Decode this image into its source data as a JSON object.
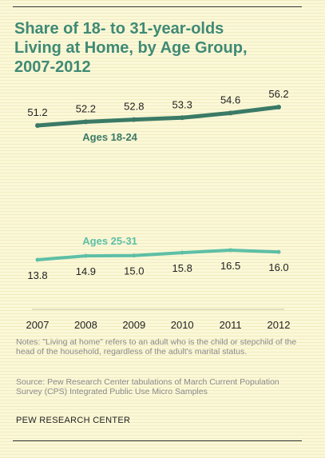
{
  "title_lines": [
    "Share of 18- to 31-year-olds",
    "Living at Home, by Age Group,",
    "2007-2012"
  ],
  "notes": "Notes: \"Living at home\" refers to an adult who is the child or stepchild of the head of the household, regardless of the adult's marital status.",
  "source": "Source: Pew Research Center tabulations of March Current Population Survey (CPS) Integrated Public Use Micro Samples",
  "footer": "PEW RESEARCH CENTER",
  "colors": {
    "title": "#3f8a75",
    "series_18_24": "#3a7a66",
    "series_25_31": "#5dbfa6"
  },
  "chart_data": {
    "type": "line",
    "x": [
      "2007",
      "2008",
      "2009",
      "2010",
      "2011",
      "2012"
    ],
    "series": [
      {
        "name": "Ages 18-24",
        "values": [
          51.2,
          52.2,
          52.8,
          53.3,
          54.6,
          56.2
        ],
        "value_labels": [
          "51.2",
          "52.2",
          "52.8",
          "53.3",
          "54.6",
          "56.2"
        ]
      },
      {
        "name": "Ages 25-31",
        "values": [
          13.8,
          14.9,
          15.0,
          15.8,
          16.5,
          16.0
        ],
        "value_labels": [
          "13.8",
          "14.9",
          "15.0",
          "15.8",
          "16.5",
          "16.0"
        ]
      }
    ],
    "grid": false,
    "legend": "inline labels"
  }
}
